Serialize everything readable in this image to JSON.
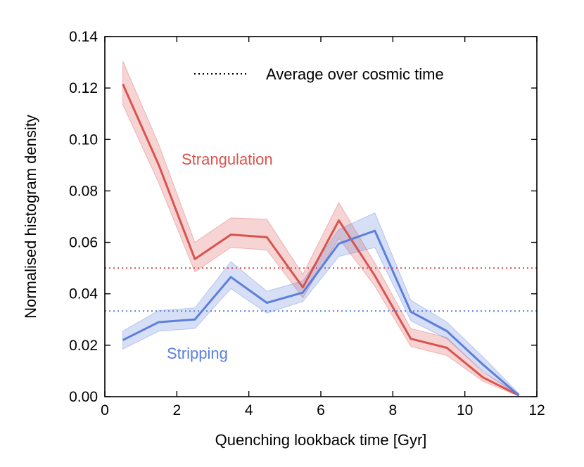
{
  "chart_data": {
    "type": "line",
    "title": "",
    "xlabel": "Quenching lookback time [Gyr]",
    "ylabel": "Normalised histogram density",
    "xlim": [
      0,
      12
    ],
    "ylim": [
      0,
      0.14
    ],
    "xticks": [
      0,
      2,
      4,
      6,
      8,
      10,
      12
    ],
    "xtick_labels": [
      "0",
      "2",
      "4",
      "6",
      "8",
      "10",
      "12"
    ],
    "yticks": [
      0,
      0.02,
      0.04,
      0.06,
      0.08,
      0.1,
      0.12,
      0.14
    ],
    "ytick_labels": [
      "0.00",
      "0.02",
      "0.04",
      "0.06",
      "0.08",
      "0.10",
      "0.12",
      "0.14"
    ],
    "grid": false,
    "legend": {
      "position": "top-right",
      "entries": [
        {
          "label": "Average over cosmic time",
          "style": "dotted",
          "color": "#000000"
        }
      ]
    },
    "x": [
      0.5,
      1.5,
      2.5,
      3.5,
      4.5,
      5.5,
      6.5,
      7.5,
      8.5,
      9.5,
      10.5,
      11.5
    ],
    "series": [
      {
        "name": "Strangulation",
        "color": "#d9534f",
        "values": [
          0.1215,
          0.09,
          0.0535,
          0.063,
          0.062,
          0.0425,
          0.0685,
          0.047,
          0.0225,
          0.019,
          0.0075,
          0.0005
        ],
        "lower": [
          0.1135,
          0.083,
          0.0485,
          0.058,
          0.057,
          0.0385,
          0.0615,
          0.043,
          0.0195,
          0.016,
          0.006,
          0.0002
        ],
        "upper": [
          0.1305,
          0.098,
          0.06,
          0.0695,
          0.069,
          0.0475,
          0.0755,
          0.052,
          0.0265,
          0.023,
          0.0095,
          0.0012
        ],
        "average": 0.05,
        "label_text": "Strangulation"
      },
      {
        "name": "Stripping",
        "color": "#5b7fdb",
        "values": [
          0.022,
          0.029,
          0.03,
          0.0465,
          0.0365,
          0.0405,
          0.0595,
          0.0645,
          0.033,
          0.0255,
          0.0125,
          0.0005
        ],
        "lower": [
          0.0185,
          0.0255,
          0.0265,
          0.042,
          0.0325,
          0.037,
          0.0545,
          0.058,
          0.0295,
          0.0225,
          0.01,
          0.0002
        ],
        "upper": [
          0.0255,
          0.0335,
          0.0345,
          0.0525,
          0.041,
          0.045,
          0.065,
          0.0715,
          0.0375,
          0.029,
          0.0155,
          0.0012
        ],
        "average": 0.0333,
        "label_text": "Stripping"
      }
    ]
  }
}
